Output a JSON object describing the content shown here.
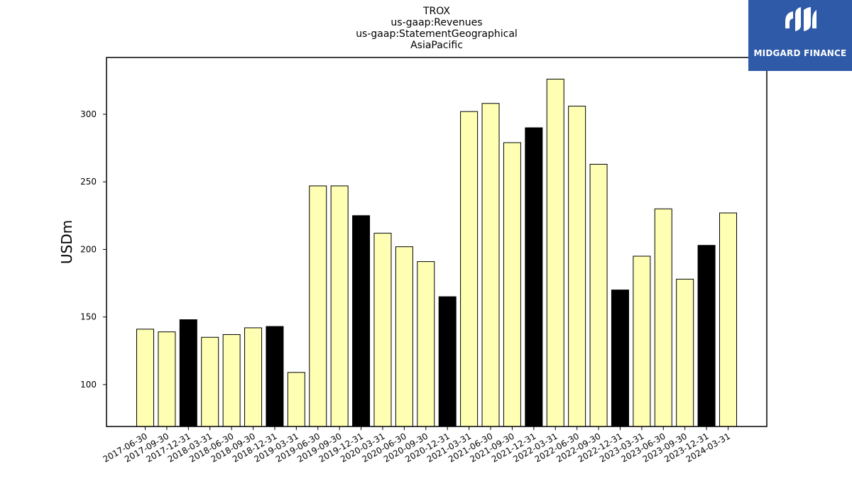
{
  "chart_data": {
    "type": "bar",
    "title_lines": [
      "TROX",
      "us-gaap:Revenues",
      "us-gaap:StatementGeographical",
      "AsiaPacific"
    ],
    "xlabel": "",
    "ylabel": "USDm",
    "ylim": [
      69,
      342
    ],
    "yticks": [
      100,
      150,
      200,
      250,
      300
    ],
    "grid": false,
    "categories": [
      "2017-06-30",
      "2017-09-30",
      "2017-12-31",
      "2018-03-31",
      "2018-06-30",
      "2018-09-30",
      "2018-12-31",
      "2019-03-31",
      "2019-06-30",
      "2019-09-30",
      "2019-12-31",
      "2020-03-31",
      "2020-06-30",
      "2020-09-30",
      "2020-12-31",
      "2021-03-31",
      "2021-06-30",
      "2021-09-30",
      "2021-12-31",
      "2022-03-31",
      "2022-06-30",
      "2022-09-30",
      "2022-12-31",
      "2023-03-31",
      "2023-06-30",
      "2023-09-30",
      "2023-12-31",
      "2024-03-31"
    ],
    "values": [
      141,
      139,
      148,
      135,
      137,
      142,
      143,
      109,
      247,
      247,
      225,
      212,
      202,
      191,
      165,
      302,
      308,
      279,
      290,
      326,
      306,
      263,
      170,
      195,
      230,
      178,
      203,
      227
    ],
    "bar_color_quarter": "#ffffb3",
    "bar_color_year_end": "#000000",
    "edge_color": "#000000"
  },
  "logo": {
    "text": "MIDGARD FINANCE",
    "background": "#2e5aa8"
  }
}
